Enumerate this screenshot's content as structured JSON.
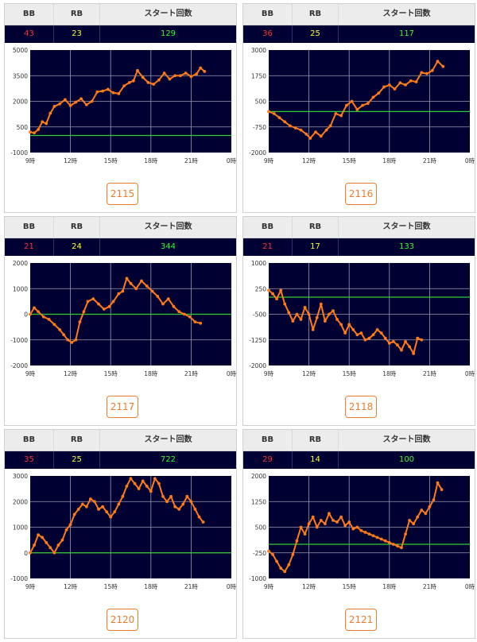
{
  "headers": {
    "bb": "BB",
    "rb": "RB",
    "start": "スタート回数"
  },
  "x_tick_labels": [
    "9時",
    "12時",
    "15時",
    "18時",
    "21時",
    "0時"
  ],
  "colors": {
    "plot_bg": "#000033",
    "line": "#ff7a1a",
    "baseline": "#33cc33",
    "grid": "#9a9ab0"
  },
  "cards": [
    {
      "bb": "43",
      "rb": "23",
      "start": "129",
      "machine": "2115"
    },
    {
      "bb": "36",
      "rb": "25",
      "start": "117",
      "machine": "2116"
    },
    {
      "bb": "21",
      "rb": "24",
      "start": "344",
      "machine": "2117"
    },
    {
      "bb": "21",
      "rb": "17",
      "start": "133",
      "machine": "2118"
    },
    {
      "bb": "35",
      "rb": "25",
      "start": "722",
      "machine": "2120"
    },
    {
      "bb": "29",
      "rb": "14",
      "start": "100",
      "machine": "2121"
    }
  ],
  "chart_data": [
    {
      "type": "line",
      "machine": "2115",
      "xlim": [
        9,
        24
      ],
      "ylim": [
        -1000,
        5000
      ],
      "baseline": 0,
      "yticks": [
        5000,
        3500,
        2000,
        500,
        -1000
      ],
      "ytick_labels": [
        "5000",
        "3500",
        "2000",
        "500",
        "-1000"
      ],
      "x": [
        9.0,
        9.3,
        9.6,
        9.9,
        10.2,
        10.5,
        10.8,
        11.2,
        11.6,
        12.0,
        12.4,
        12.8,
        13.2,
        13.6,
        14.0,
        14.4,
        14.8,
        15.2,
        15.6,
        16.0,
        16.4,
        16.7,
        17.0,
        17.4,
        17.8,
        18.2,
        18.6,
        19.0,
        19.4,
        19.8,
        20.2,
        20.6,
        21.0,
        21.4,
        21.7,
        22.0
      ],
      "y": [
        200,
        150,
        350,
        800,
        700,
        1300,
        1700,
        1850,
        2100,
        1750,
        1950,
        2150,
        1800,
        2000,
        2550,
        2600,
        2700,
        2500,
        2450,
        2900,
        3100,
        3200,
        3800,
        3400,
        3100,
        3000,
        3250,
        3650,
        3300,
        3500,
        3500,
        3650,
        3450,
        3600,
        3950,
        3750
      ]
    },
    {
      "type": "line",
      "machine": "2116",
      "xlim": [
        9,
        24
      ],
      "ylim": [
        -2000,
        3000
      ],
      "baseline": 0,
      "yticks": [
        3000,
        1750,
        500,
        -750,
        -2000
      ],
      "ytick_labels": [
        "3000",
        "1750",
        "500",
        "-750",
        "-2000"
      ],
      "x": [
        9.0,
        9.4,
        9.8,
        10.2,
        10.6,
        11.0,
        11.4,
        11.8,
        12.1,
        12.5,
        12.9,
        13.3,
        13.6,
        14.0,
        14.4,
        14.8,
        15.2,
        15.6,
        16.0,
        16.4,
        16.8,
        17.2,
        17.6,
        18.0,
        18.4,
        18.8,
        19.2,
        19.6,
        20.0,
        20.4,
        20.8,
        21.2,
        21.6,
        22.0
      ],
      "y": [
        0,
        -100,
        -300,
        -500,
        -700,
        -800,
        -900,
        -1100,
        -1300,
        -1000,
        -1200,
        -900,
        -700,
        -100,
        -200,
        300,
        500,
        100,
        300,
        400,
        700,
        900,
        1200,
        1300,
        1100,
        1400,
        1300,
        1500,
        1450,
        1900,
        1850,
        2000,
        2450,
        2200
      ]
    },
    {
      "type": "line",
      "machine": "2117",
      "xlim": [
        9,
        24
      ],
      "ylim": [
        -2000,
        2000
      ],
      "baseline": 0,
      "yticks": [
        2000,
        1000,
        0,
        -1000,
        -2000
      ],
      "ytick_labels": [
        "2000",
        "1000",
        "0",
        "-1000",
        "-2000"
      ],
      "x": [
        9.0,
        9.3,
        9.6,
        10.0,
        10.4,
        10.8,
        11.2,
        11.5,
        11.8,
        12.1,
        12.4,
        12.7,
        13.0,
        13.3,
        13.7,
        14.1,
        14.5,
        14.9,
        15.2,
        15.6,
        15.9,
        16.2,
        16.5,
        16.9,
        17.3,
        17.7,
        18.1,
        18.5,
        18.9,
        19.3,
        19.7,
        20.1,
        20.5,
        20.9,
        21.3,
        21.7
      ],
      "y": [
        0,
        250,
        100,
        -100,
        -200,
        -400,
        -600,
        -800,
        -1000,
        -1100,
        -1000,
        -300,
        100,
        500,
        600,
        400,
        200,
        300,
        500,
        800,
        900,
        1400,
        1200,
        1000,
        1300,
        1100,
        900,
        700,
        400,
        600,
        300,
        100,
        0,
        -100,
        -300,
        -350
      ]
    },
    {
      "type": "line",
      "machine": "2118",
      "xlim": [
        9,
        24
      ],
      "ylim": [
        -2000,
        1000
      ],
      "baseline": 0,
      "yticks": [
        1000,
        250,
        -500,
        -1250,
        -2000
      ],
      "ytick_labels": [
        "1000",
        "250",
        "-500",
        "-1250",
        "-2000"
      ],
      "x": [
        9.0,
        9.3,
        9.6,
        9.9,
        10.2,
        10.5,
        10.8,
        11.1,
        11.4,
        11.7,
        12.0,
        12.3,
        12.6,
        12.9,
        13.2,
        13.5,
        13.8,
        14.1,
        14.4,
        14.7,
        15.0,
        15.3,
        15.6,
        15.9,
        16.2,
        16.5,
        16.8,
        17.1,
        17.4,
        17.7,
        18.0,
        18.3,
        18.6,
        18.9,
        19.2,
        19.5,
        19.8,
        20.1,
        20.4
      ],
      "y": [
        200,
        100,
        -50,
        200,
        -200,
        -450,
        -700,
        -500,
        -650,
        -300,
        -500,
        -950,
        -600,
        -200,
        -700,
        -500,
        -400,
        -650,
        -800,
        -1050,
        -800,
        -950,
        -1100,
        -1050,
        -1250,
        -1200,
        -1100,
        -950,
        -1050,
        -1200,
        -1350,
        -1300,
        -1400,
        -1550,
        -1300,
        -1450,
        -1650,
        -1200,
        -1250
      ]
    },
    {
      "type": "line",
      "machine": "2120",
      "xlim": [
        9,
        24
      ],
      "ylim": [
        -1000,
        3000
      ],
      "baseline": 0,
      "yticks": [
        3000,
        2000,
        1000,
        0,
        -1000
      ],
      "ytick_labels": [
        "3000",
        "2000",
        "1000",
        "0",
        "-1000"
      ],
      "x": [
        9.0,
        9.3,
        9.6,
        9.9,
        10.2,
        10.5,
        10.8,
        11.1,
        11.4,
        11.7,
        12.0,
        12.3,
        12.6,
        12.9,
        13.2,
        13.5,
        13.8,
        14.1,
        14.4,
        14.7,
        15.0,
        15.3,
        15.6,
        15.9,
        16.2,
        16.5,
        16.8,
        17.1,
        17.4,
        17.7,
        18.0,
        18.3,
        18.6,
        18.9,
        19.2,
        19.5,
        19.8,
        20.1,
        20.4,
        20.7,
        21.0,
        21.3,
        21.6,
        21.9
      ],
      "y": [
        0,
        300,
        700,
        600,
        400,
        200,
        0,
        300,
        500,
        900,
        1100,
        1500,
        1700,
        1900,
        1800,
        2100,
        2000,
        1700,
        1800,
        1600,
        1400,
        1600,
        1900,
        2200,
        2600,
        2900,
        2700,
        2500,
        2800,
        2600,
        2400,
        2900,
        2700,
        2200,
        2000,
        2200,
        1800,
        1700,
        1900,
        2200,
        2000,
        1700,
        1400,
        1200
      ]
    },
    {
      "type": "line",
      "machine": "2121",
      "xlim": [
        9,
        24
      ],
      "ylim": [
        -1000,
        2000
      ],
      "baseline": 0,
      "yticks": [
        2000,
        1250,
        500,
        -250,
        -1000
      ],
      "ytick_labels": [
        "2000",
        "1250",
        "500",
        "-250",
        "-1000"
      ],
      "x": [
        9.0,
        9.3,
        9.6,
        9.9,
        10.2,
        10.5,
        10.8,
        11.1,
        11.4,
        11.7,
        12.0,
        12.3,
        12.6,
        12.9,
        13.2,
        13.5,
        13.8,
        14.1,
        14.4,
        14.7,
        15.0,
        15.3,
        15.6,
        15.9,
        16.2,
        16.5,
        16.8,
        17.1,
        17.4,
        17.7,
        18.0,
        18.3,
        18.6,
        18.9,
        19.2,
        19.5,
        19.8,
        20.1,
        20.4,
        20.7,
        21.0,
        21.3,
        21.6,
        21.9
      ],
      "y": [
        -200,
        -300,
        -500,
        -700,
        -800,
        -600,
        -300,
        100,
        500,
        300,
        600,
        800,
        500,
        700,
        600,
        900,
        700,
        650,
        800,
        550,
        650,
        450,
        500,
        400,
        350,
        300,
        250,
        200,
        150,
        100,
        50,
        0,
        -50,
        -100,
        300,
        700,
        600,
        800,
        1000,
        900,
        1100,
        1300,
        1800,
        1600
      ]
    }
  ]
}
